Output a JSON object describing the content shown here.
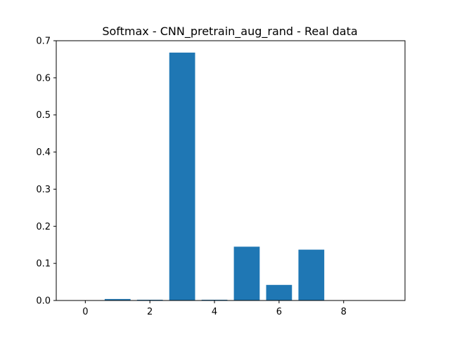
{
  "chart_data": {
    "type": "bar",
    "title": "Softmax - CNN_pretrain_aug_rand - Real data",
    "xlabel": "",
    "ylabel": "",
    "categories": [
      0,
      1,
      2,
      3,
      4,
      5,
      6,
      7,
      8,
      9
    ],
    "values": [
      0.0,
      0.004,
      0.002,
      0.668,
      0.002,
      0.145,
      0.042,
      0.137,
      0.0,
      0.0
    ],
    "x_ticks": [
      "0",
      "2",
      "4",
      "6",
      "8"
    ],
    "x_tick_values": [
      0,
      2,
      4,
      6,
      8
    ],
    "y_ticks": [
      "0.0",
      "0.1",
      "0.2",
      "0.3",
      "0.4",
      "0.5",
      "0.6",
      "0.7"
    ],
    "y_tick_values": [
      0,
      0.1,
      0.2,
      0.3,
      0.4,
      0.5,
      0.6,
      0.7
    ],
    "xlim": [
      -0.9,
      9.9
    ],
    "ylim": [
      0,
      0.7
    ],
    "bar_color": "#1f77b4",
    "grid": false,
    "legend": "none"
  }
}
